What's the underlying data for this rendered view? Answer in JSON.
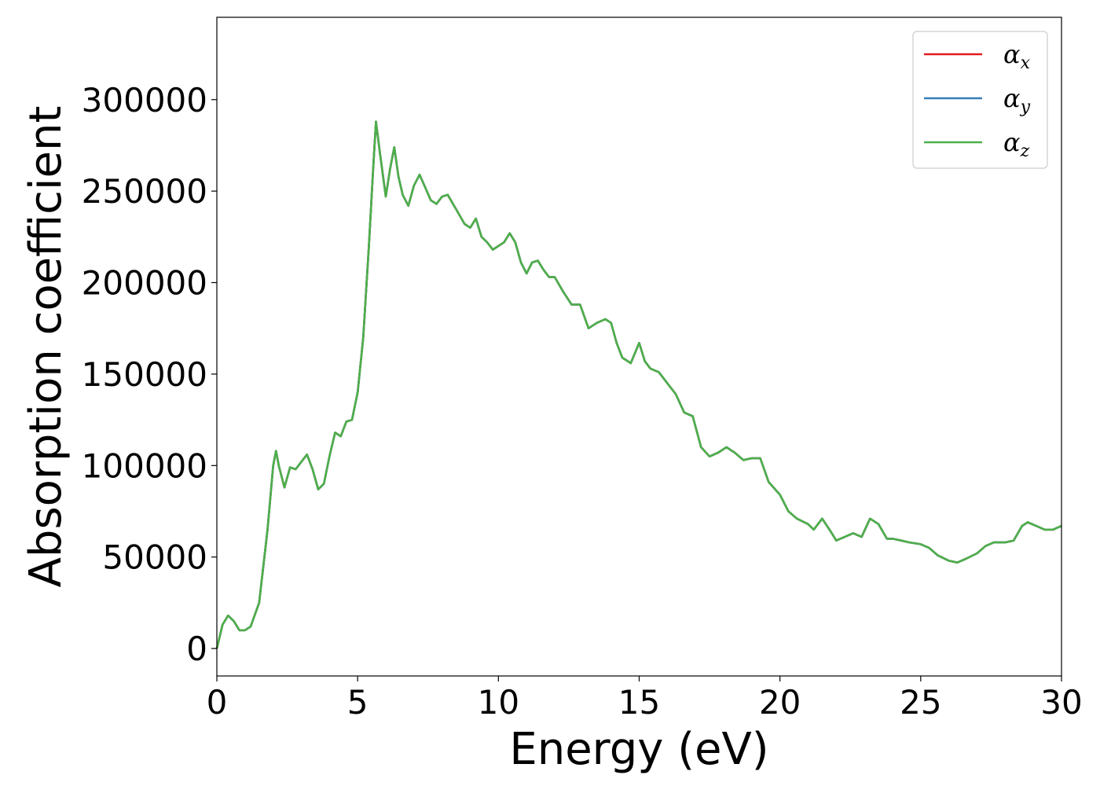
{
  "chart_data": {
    "type": "line",
    "xlabel": "Energy (eV)",
    "ylabel": "Absorption coefficient",
    "xlim": [
      0,
      30
    ],
    "ylim": [
      -15000,
      345000
    ],
    "xticks": [
      "0",
      "5",
      "10",
      "15",
      "20",
      "25",
      "30"
    ],
    "yticks": [
      "0",
      "50000",
      "100000",
      "150000",
      "200000",
      "250000",
      "300000"
    ],
    "grid": false,
    "legend_position": "top-right",
    "x": [
      0,
      0.2,
      0.4,
      0.6,
      0.8,
      1.0,
      1.2,
      1.5,
      1.8,
      2.0,
      2.1,
      2.2,
      2.4,
      2.6,
      2.8,
      3.0,
      3.2,
      3.4,
      3.6,
      3.8,
      4.0,
      4.2,
      4.4,
      4.6,
      4.8,
      5.0,
      5.2,
      5.4,
      5.55,
      5.65,
      5.8,
      6.0,
      6.15,
      6.3,
      6.45,
      6.6,
      6.8,
      7.0,
      7.2,
      7.4,
      7.6,
      7.8,
      8.0,
      8.2,
      8.5,
      8.8,
      9.0,
      9.2,
      9.4,
      9.6,
      9.8,
      10.0,
      10.2,
      10.4,
      10.6,
      10.8,
      11.0,
      11.2,
      11.4,
      11.6,
      11.8,
      12.0,
      12.3,
      12.6,
      12.9,
      13.2,
      13.5,
      13.8,
      14.0,
      14.2,
      14.4,
      14.7,
      15.0,
      15.2,
      15.4,
      15.7,
      16.0,
      16.3,
      16.6,
      16.9,
      17.2,
      17.5,
      17.8,
      18.1,
      18.4,
      18.7,
      19.0,
      19.3,
      19.6,
      20.0,
      20.3,
      20.6,
      21.0,
      21.2,
      21.5,
      21.8,
      22.0,
      22.3,
      22.6,
      22.9,
      23.2,
      23.5,
      23.8,
      24.0,
      24.3,
      24.6,
      25.0,
      25.3,
      25.6,
      26.0,
      26.3,
      26.6,
      27.0,
      27.3,
      27.6,
      28.0,
      28.3,
      28.6,
      28.8,
      29.1,
      29.4,
      29.7,
      30.0
    ],
    "series": [
      {
        "name": "α_x",
        "color": "#e41a1c",
        "values": [
          0,
          13000,
          18000,
          15000,
          10000,
          10000,
          12000,
          25000,
          65000,
          100000,
          108000,
          100000,
          88000,
          99000,
          98000,
          102000,
          106000,
          98000,
          87000,
          90000,
          105000,
          118000,
          116000,
          124000,
          125000,
          140000,
          170000,
          220000,
          262000,
          288000,
          270000,
          247000,
          262000,
          274000,
          258000,
          248000,
          242000,
          253000,
          259000,
          252000,
          245000,
          243000,
          247000,
          248000,
          240000,
          232000,
          230000,
          235000,
          225000,
          222000,
          218000,
          220000,
          222000,
          227000,
          222000,
          211000,
          205000,
          211000,
          212000,
          207000,
          203000,
          203000,
          195000,
          188000,
          188000,
          175000,
          178000,
          180000,
          178000,
          167000,
          159000,
          156000,
          167000,
          157000,
          153000,
          151000,
          145000,
          139000,
          129000,
          127000,
          110000,
          105000,
          107000,
          110000,
          107000,
          103000,
          104000,
          104000,
          91000,
          84000,
          75000,
          71000,
          68000,
          65000,
          71000,
          64000,
          59000,
          61000,
          63000,
          61000,
          71000,
          68000,
          60000,
          60000,
          59000,
          58000,
          57000,
          55000,
          51000,
          48000,
          47000,
          49000,
          52000,
          56000,
          58000,
          58000,
          59000,
          67000,
          69000,
          67000,
          65000,
          65000,
          67000
        ]
      },
      {
        "name": "α_y",
        "color": "#377eb8",
        "values": [
          0,
          13000,
          18000,
          15000,
          10000,
          10000,
          12000,
          25000,
          65000,
          100000,
          108000,
          100000,
          88000,
          99000,
          98000,
          102000,
          106000,
          98000,
          87000,
          90000,
          105000,
          118000,
          116000,
          124000,
          125000,
          140000,
          170000,
          220000,
          262000,
          288000,
          270000,
          247000,
          262000,
          274000,
          258000,
          248000,
          242000,
          253000,
          259000,
          252000,
          245000,
          243000,
          247000,
          248000,
          240000,
          232000,
          230000,
          235000,
          225000,
          222000,
          218000,
          220000,
          222000,
          227000,
          222000,
          211000,
          205000,
          211000,
          212000,
          207000,
          203000,
          203000,
          195000,
          188000,
          188000,
          175000,
          178000,
          180000,
          178000,
          167000,
          159000,
          156000,
          167000,
          157000,
          153000,
          151000,
          145000,
          139000,
          129000,
          127000,
          110000,
          105000,
          107000,
          110000,
          107000,
          103000,
          104000,
          104000,
          91000,
          84000,
          75000,
          71000,
          68000,
          65000,
          71000,
          64000,
          59000,
          61000,
          63000,
          61000,
          71000,
          68000,
          60000,
          60000,
          59000,
          58000,
          57000,
          55000,
          51000,
          48000,
          47000,
          49000,
          52000,
          56000,
          58000,
          58000,
          59000,
          67000,
          69000,
          67000,
          65000,
          65000,
          67000
        ]
      },
      {
        "name": "α_z",
        "color": "#4daf4a",
        "values": [
          0,
          13000,
          18000,
          15000,
          10000,
          10000,
          12000,
          25000,
          65000,
          100000,
          108000,
          100000,
          88000,
          99000,
          98000,
          102000,
          106000,
          98000,
          87000,
          90000,
          105000,
          118000,
          116000,
          124000,
          125000,
          140000,
          170000,
          220000,
          262000,
          288000,
          270000,
          247000,
          262000,
          274000,
          258000,
          248000,
          242000,
          253000,
          259000,
          252000,
          245000,
          243000,
          247000,
          248000,
          240000,
          232000,
          230000,
          235000,
          225000,
          222000,
          218000,
          220000,
          222000,
          227000,
          222000,
          211000,
          205000,
          211000,
          212000,
          207000,
          203000,
          203000,
          195000,
          188000,
          188000,
          175000,
          178000,
          180000,
          178000,
          167000,
          159000,
          156000,
          167000,
          157000,
          153000,
          151000,
          145000,
          139000,
          129000,
          127000,
          110000,
          105000,
          107000,
          110000,
          107000,
          103000,
          104000,
          104000,
          91000,
          84000,
          75000,
          71000,
          68000,
          65000,
          71000,
          64000,
          59000,
          61000,
          63000,
          61000,
          71000,
          68000,
          60000,
          60000,
          59000,
          58000,
          57000,
          55000,
          51000,
          48000,
          47000,
          49000,
          52000,
          56000,
          58000,
          58000,
          59000,
          67000,
          69000,
          67000,
          65000,
          65000,
          67000
        ]
      }
    ]
  }
}
